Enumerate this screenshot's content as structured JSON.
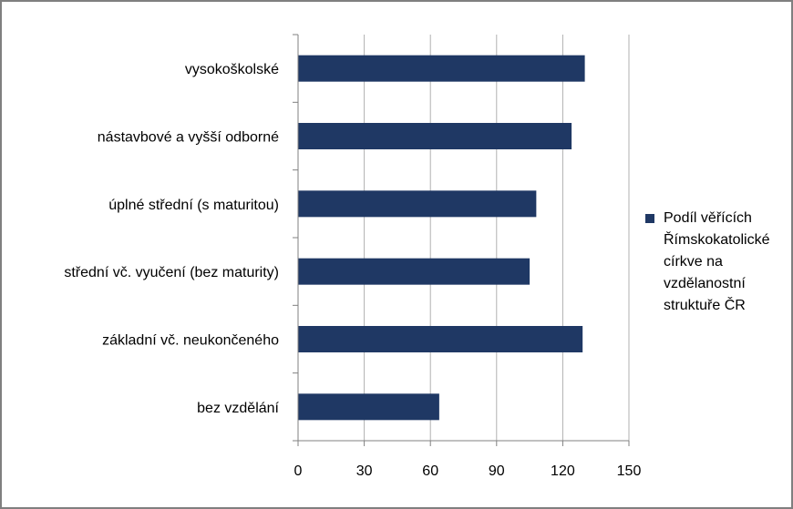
{
  "chart_data": {
    "type": "bar",
    "orientation": "horizontal",
    "categories": [
      "vysokoškolské",
      "nástavbové a vyšší odborné",
      "úplné střední (s maturitou)",
      "střední vč. vyučení (bez maturity)",
      "základní vč. neukončeného",
      "bez vzdělání"
    ],
    "series": [
      {
        "name": "Podíl věřících Římskokatolické církve na vzdělanostní struktuře ČR",
        "values": [
          130,
          124,
          108,
          105,
          129,
          64
        ]
      }
    ],
    "xlim": [
      0,
      150
    ],
    "xticks": [
      "0",
      "30",
      "60",
      "90",
      "120",
      "150"
    ],
    "grid": "vertical",
    "legend": "right",
    "colors": {
      "bar": "#1f3864",
      "grid": "#b0b0b0",
      "axis": "#808080"
    }
  }
}
